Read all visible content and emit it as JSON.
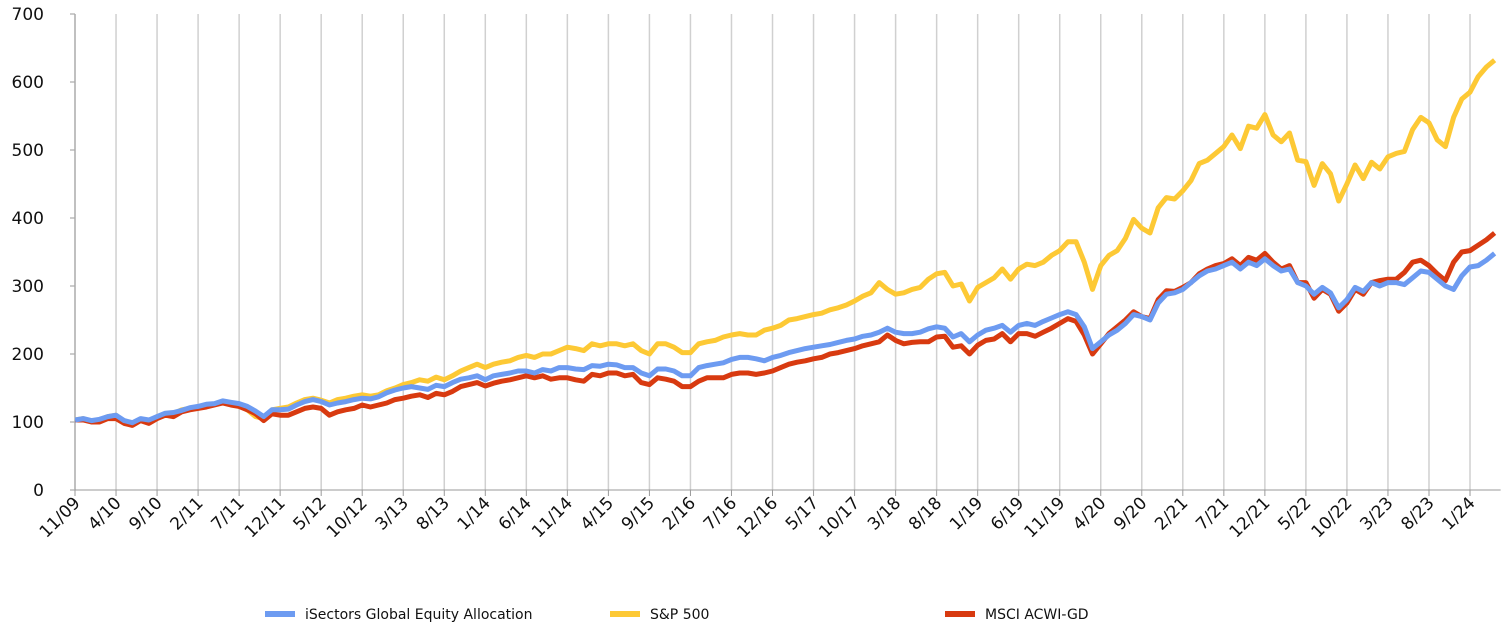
{
  "chart_data": {
    "type": "line",
    "categories": [
      "11/09",
      null,
      null,
      null,
      null,
      "4/10",
      null,
      null,
      null,
      null,
      "9/10",
      null,
      null,
      null,
      null,
      "2/11",
      null,
      null,
      null,
      null,
      "7/11",
      null,
      null,
      null,
      null,
      "12/11",
      null,
      null,
      null,
      null,
      "5/12",
      null,
      null,
      null,
      null,
      "10/12",
      null,
      null,
      null,
      null,
      "3/13",
      null,
      null,
      null,
      null,
      "8/13",
      null,
      null,
      null,
      null,
      "1/14",
      null,
      null,
      null,
      null,
      "6/14",
      null,
      null,
      null,
      null,
      "11/14",
      null,
      null,
      null,
      null,
      "4/15",
      null,
      null,
      null,
      null,
      "9/15",
      null,
      null,
      null,
      null,
      "2/16",
      null,
      null,
      null,
      null,
      "7/16",
      null,
      null,
      null,
      null,
      "12/16",
      null,
      null,
      null,
      null,
      "5/17",
      null,
      null,
      null,
      null,
      "10/17",
      null,
      null,
      null,
      null,
      "3/18",
      null,
      null,
      null,
      null,
      "8/18",
      null,
      null,
      null,
      null,
      "1/19",
      null,
      null,
      null,
      null,
      "6/19",
      null,
      null,
      null,
      null,
      "11/19",
      null,
      null,
      null,
      null,
      "4/20",
      null,
      null,
      null,
      null,
      "9/20",
      null,
      null,
      null,
      null,
      "2/21",
      null,
      null,
      null,
      null,
      "7/21",
      null,
      null,
      null,
      null,
      "12/21",
      null,
      null,
      null,
      null,
      "5/22",
      null,
      null,
      null,
      null,
      "10/22",
      null,
      null,
      null,
      null,
      "3/23",
      null,
      null,
      null,
      null,
      "8/23",
      null,
      null,
      null,
      null,
      "1/24",
      null,
      null,
      null
    ],
    "series": [
      {
        "name": "iSectors Global Equity Allocation",
        "color": "#6d9bf1",
        "values": [
          103,
          105,
          102,
          104,
          108,
          110,
          102,
          99,
          105,
          103,
          108,
          113,
          114,
          117,
          121,
          123,
          126,
          127,
          131,
          129,
          127,
          123,
          116,
          108,
          118,
          118,
          119,
          125,
          130,
          133,
          130,
          125,
          128,
          130,
          133,
          135,
          134,
          137,
          143,
          147,
          150,
          152,
          150,
          148,
          154,
          152,
          158,
          163,
          165,
          168,
          162,
          168,
          170,
          172,
          175,
          175,
          172,
          177,
          175,
          180,
          180,
          178,
          177,
          183,
          182,
          185,
          184,
          180,
          180,
          172,
          168,
          178,
          178,
          175,
          168,
          168,
          180,
          183,
          185,
          187,
          192,
          195,
          195,
          193,
          190,
          195,
          198,
          202,
          205,
          208,
          210,
          212,
          214,
          217,
          220,
          222,
          226,
          228,
          232,
          238,
          232,
          230,
          230,
          232,
          237,
          240,
          238,
          225,
          230,
          218,
          228,
          235,
          238,
          242,
          232,
          242,
          245,
          242,
          248,
          253,
          258,
          262,
          258,
          240,
          208,
          218,
          228,
          235,
          245,
          258,
          255,
          250,
          275,
          288,
          290,
          295,
          305,
          315,
          322,
          325,
          330,
          335,
          325,
          335,
          330,
          340,
          330,
          322,
          325,
          305,
          300,
          288,
          298,
          290,
          268,
          280,
          298,
          292,
          305,
          300,
          305,
          305,
          302,
          312,
          322,
          320,
          310,
          300,
          295,
          315,
          328,
          330,
          338,
          348
        ]
      },
      {
        "name": "S&P 500",
        "color": "#fdc935",
        "values": [
          103,
          105,
          101,
          103,
          108,
          110,
          100,
          97,
          103,
          100,
          108,
          112,
          112,
          118,
          120,
          122,
          125,
          126,
          130,
          128,
          125,
          118,
          108,
          105,
          118,
          120,
          122,
          128,
          133,
          135,
          132,
          128,
          133,
          135,
          138,
          140,
          138,
          140,
          146,
          150,
          155,
          158,
          162,
          160,
          166,
          162,
          168,
          175,
          180,
          185,
          180,
          185,
          188,
          190,
          195,
          198,
          195,
          200,
          200,
          205,
          210,
          208,
          205,
          215,
          212,
          215,
          215,
          212,
          215,
          205,
          200,
          215,
          215,
          210,
          202,
          202,
          215,
          218,
          220,
          225,
          228,
          230,
          228,
          228,
          235,
          238,
          242,
          250,
          252,
          255,
          258,
          260,
          265,
          268,
          272,
          278,
          285,
          290,
          305,
          295,
          288,
          290,
          295,
          298,
          310,
          318,
          320,
          300,
          303,
          278,
          298,
          305,
          312,
          325,
          310,
          325,
          332,
          330,
          335,
          345,
          352,
          365,
          365,
          335,
          295,
          330,
          345,
          352,
          370,
          398,
          385,
          378,
          415,
          430,
          428,
          440,
          455,
          480,
          485,
          495,
          505,
          522,
          502,
          535,
          532,
          552,
          522,
          512,
          525,
          485,
          483,
          448,
          480,
          465,
          425,
          450,
          478,
          458,
          482,
          472,
          490,
          495,
          498,
          530,
          548,
          540,
          515,
          505,
          548,
          575,
          585,
          608,
          622,
          632
        ]
      },
      {
        "name": "MSCI ACWI-GD",
        "color": "#d83a10",
        "values": [
          103,
          103,
          100,
          100,
          105,
          105,
          98,
          95,
          102,
          98,
          105,
          110,
          108,
          115,
          118,
          120,
          122,
          125,
          128,
          125,
          123,
          118,
          112,
          102,
          112,
          110,
          110,
          115,
          120,
          122,
          120,
          110,
          115,
          118,
          120,
          125,
          122,
          125,
          128,
          133,
          135,
          138,
          140,
          136,
          142,
          140,
          145,
          152,
          155,
          158,
          153,
          157,
          160,
          162,
          165,
          168,
          165,
          168,
          163,
          165,
          165,
          162,
          160,
          170,
          168,
          172,
          172,
          168,
          170,
          158,
          155,
          165,
          163,
          160,
          152,
          152,
          160,
          165,
          165,
          165,
          170,
          172,
          172,
          170,
          172,
          175,
          180,
          185,
          188,
          190,
          193,
          195,
          200,
          202,
          205,
          208,
          212,
          215,
          218,
          228,
          220,
          215,
          217,
          218,
          218,
          225,
          226,
          210,
          212,
          200,
          213,
          220,
          222,
          230,
          218,
          230,
          230,
          226,
          232,
          238,
          245,
          252,
          248,
          228,
          200,
          215,
          230,
          240,
          250,
          262,
          255,
          252,
          280,
          293,
          292,
          298,
          305,
          318,
          325,
          330,
          333,
          340,
          330,
          342,
          338,
          348,
          335,
          325,
          330,
          305,
          305,
          282,
          295,
          288,
          263,
          275,
          295,
          288,
          305,
          308,
          310,
          310,
          320,
          335,
          338,
          330,
          318,
          308,
          335,
          350,
          352,
          360,
          368,
          378
        ]
      }
    ],
    "ylim": [
      0,
      700
    ],
    "yticks": [
      0,
      100,
      200,
      300,
      400,
      500,
      600,
      700
    ],
    "grid": true
  }
}
